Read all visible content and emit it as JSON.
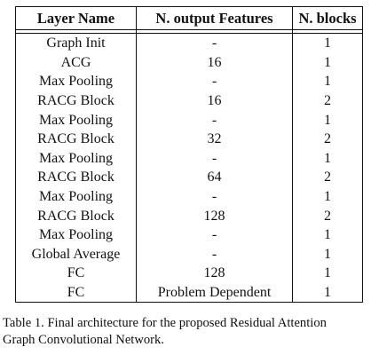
{
  "table": {
    "headers": [
      "Layer Name",
      "N. output Features",
      "N. blocks"
    ],
    "rows": [
      [
        "Graph Init",
        "-",
        "1"
      ],
      [
        "ACG",
        "16",
        "1"
      ],
      [
        "Max Pooling",
        "-",
        "1"
      ],
      [
        "RACG Block",
        "16",
        "2"
      ],
      [
        "Max Pooling",
        "-",
        "1"
      ],
      [
        "RACG Block",
        "32",
        "2"
      ],
      [
        "Max Pooling",
        "-",
        "1"
      ],
      [
        "RACG Block",
        "64",
        "2"
      ],
      [
        "Max Pooling",
        "-",
        "1"
      ],
      [
        "RACG Block",
        "128",
        "2"
      ],
      [
        "Max Pooling",
        "-",
        "1"
      ],
      [
        "Global Average",
        "-",
        "1"
      ],
      [
        "FC",
        "128",
        "1"
      ],
      [
        "FC",
        "Problem Dependent",
        "1"
      ]
    ]
  },
  "caption": {
    "line1": "Table 1. Final architecture for the proposed Residual Attention",
    "line2": "Graph Convolutional Network."
  }
}
